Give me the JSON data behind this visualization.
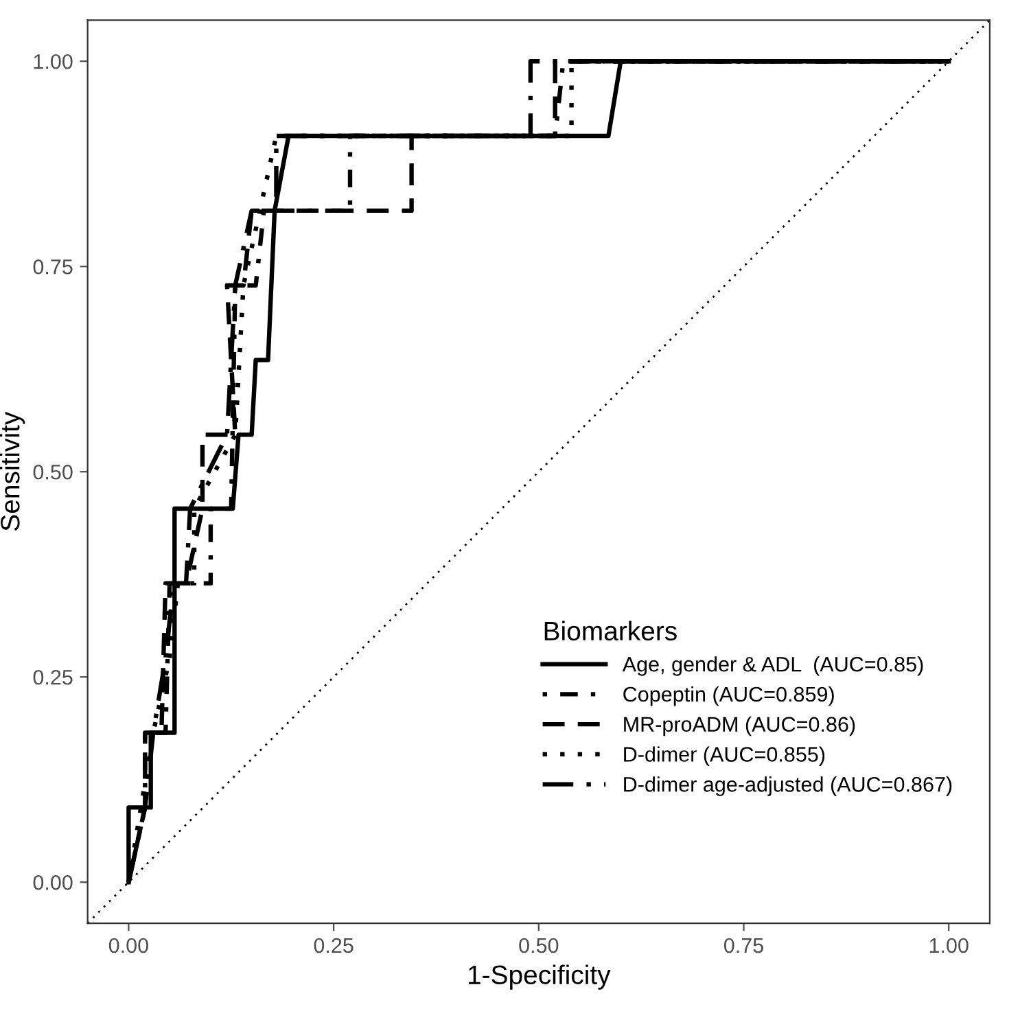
{
  "chart_data": {
    "type": "line",
    "xlabel": "1-Specificity",
    "ylabel": "Sensitivity",
    "legend_title": "Biomarkers",
    "legend": "bottom right",
    "grid": false,
    "xlim": [
      -0.05,
      1.05
    ],
    "ylim": [
      -0.05,
      1.05
    ],
    "xticks": [
      {
        "value": 0,
        "label": "0.00"
      },
      {
        "value": 0.25,
        "label": "0.25"
      },
      {
        "value": 0.5,
        "label": "0.50"
      },
      {
        "value": 0.75,
        "label": "0.75"
      },
      {
        "value": 1,
        "label": "1.00"
      }
    ],
    "yticks": [
      {
        "value": 0,
        "label": "0.00"
      },
      {
        "value": 0.25,
        "label": "0.25"
      },
      {
        "value": 0.5,
        "label": "0.50"
      },
      {
        "value": 0.75,
        "label": "0.75"
      },
      {
        "value": 1,
        "label": "1.00"
      }
    ],
    "series": [
      {
        "name": "Age, gender & ADL  (AUC=0.85)",
        "color": "#000000",
        "line_style": "solid",
        "x": [
          0,
          0,
          0.027,
          0.027,
          0.056,
          0.056,
          0.127,
          0.134,
          0.15,
          0.155,
          0.17,
          0.178,
          0.195,
          0.585,
          0.6,
          1
        ],
        "values": [
          0,
          0.091,
          0.091,
          0.182,
          0.182,
          0.455,
          0.455,
          0.545,
          0.545,
          0.636,
          0.636,
          0.818,
          0.909,
          0.909,
          1,
          1
        ]
      },
      {
        "name": "Copeptin (AUC=0.859)",
        "color": "#000000",
        "line_style": "dashdot",
        "x": [
          0,
          0.02,
          0.02,
          0.045,
          0.05,
          0.075,
          0.1,
          0.1,
          0.125,
          0.13,
          0.155,
          0.165,
          0.27,
          0.27,
          0.52,
          0.53,
          1
        ],
        "values": [
          0,
          0.091,
          0.182,
          0.182,
          0.364,
          0.364,
          0.364,
          0.455,
          0.455,
          0.727,
          0.727,
          0.818,
          0.818,
          0.909,
          0.909,
          1,
          1
        ]
      },
      {
        "name": "MR-proADM (AUC=0.86)",
        "color": "#000000",
        "line_style": "dashed",
        "x": [
          0,
          0.02,
          0.02,
          0.04,
          0.045,
          0.07,
          0.09,
          0.09,
          0.13,
          0.12,
          0.14,
          0.15,
          0.345,
          0.345,
          0.52,
          0.52,
          1
        ],
        "values": [
          0,
          0.091,
          0.182,
          0.182,
          0.364,
          0.364,
          0.455,
          0.545,
          0.545,
          0.727,
          0.727,
          0.818,
          0.818,
          0.909,
          0.909,
          1,
          1
        ]
      },
      {
        "name": "D-dimer (AUC=0.855)",
        "color": "#000000",
        "line_style": "dotted",
        "x": [
          0,
          0.015,
          0.03,
          0.05,
          0.06,
          0.08,
          0.08,
          0.13,
          0.14,
          0.16,
          0.18,
          0.54,
          0.54,
          1
        ],
        "values": [
          0,
          0.091,
          0.182,
          0.273,
          0.364,
          0.364,
          0.455,
          0.545,
          0.727,
          0.818,
          0.909,
          0.909,
          1,
          1
        ]
      },
      {
        "name": "D-dimer age-adjusted (AUC=0.867)",
        "color": "#000000",
        "line_style": "longdashdot",
        "x": [
          0,
          0.02,
          0.03,
          0.045,
          0.055,
          0.07,
          0.075,
          0.12,
          0.13,
          0.15,
          0.18,
          0.18,
          0.49,
          0.49,
          1
        ],
        "values": [
          0,
          0.091,
          0.182,
          0.273,
          0.364,
          0.364,
          0.455,
          0.545,
          0.727,
          0.818,
          0.818,
          0.909,
          0.909,
          1,
          1
        ]
      },
      {
        "color": "#000000",
        "line_style": "dotted",
        "x": [
          -0.05,
          1.05
        ],
        "values": [
          -0.05,
          1.05
        ]
      }
    ]
  }
}
